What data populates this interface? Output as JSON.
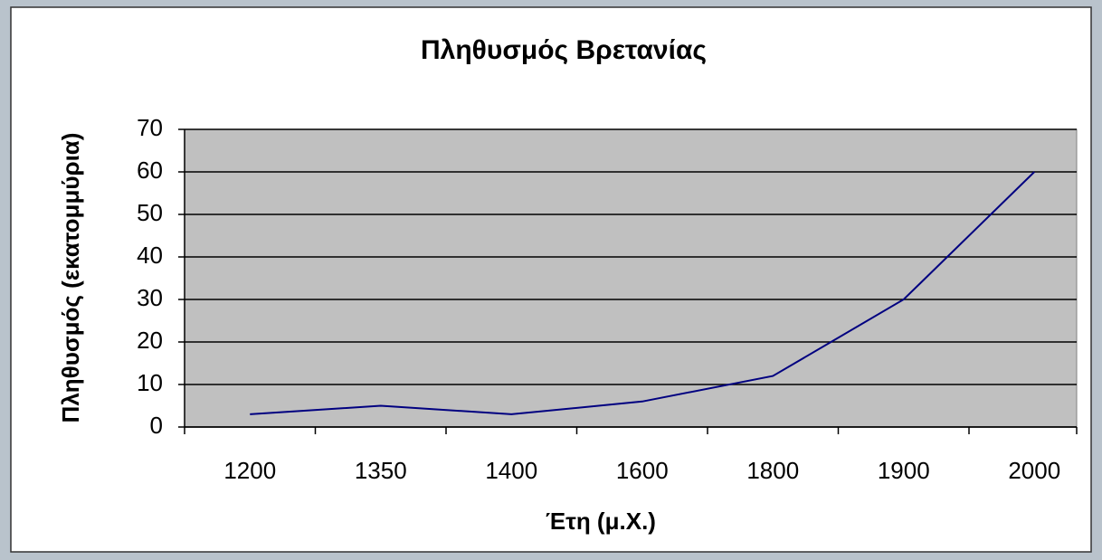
{
  "chart_data": {
    "type": "line",
    "title": "Πληθυσμός Βρετανίας",
    "x_label": "Έτη (μ.Χ.)",
    "y_label": "Πληθυσμός (εκατομμύρια)",
    "categories": [
      "1200",
      "1350",
      "1400",
      "1600",
      "1800",
      "1900",
      "2000"
    ],
    "series": [
      {
        "name": "Πληθυσμός",
        "color": "#000080",
        "values": [
          3,
          5,
          3,
          6,
          12,
          30,
          60
        ]
      }
    ],
    "ylim": [
      0,
      70
    ],
    "yticks": [
      0,
      10,
      20,
      30,
      40,
      50,
      60,
      70
    ],
    "grid": true
  }
}
